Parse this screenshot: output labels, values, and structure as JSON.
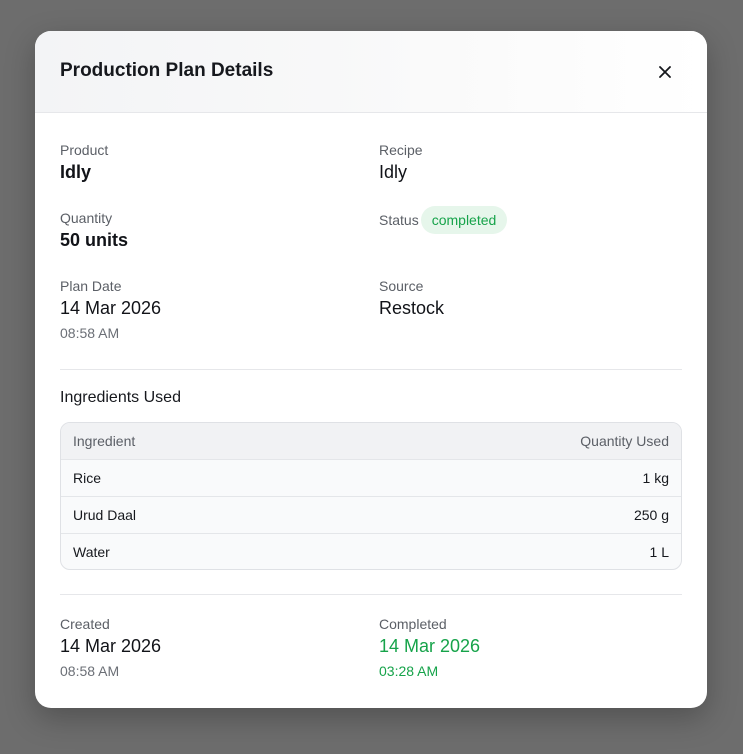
{
  "modal": {
    "title": "Production Plan Details"
  },
  "details": {
    "product_label": "Product",
    "product_value": "Idly",
    "recipe_label": "Recipe",
    "recipe_value": "Idly",
    "quantity_label": "Quantity",
    "quantity_value": "50 units",
    "status_label": "Status",
    "status_value": "completed",
    "plan_date_label": "Plan Date",
    "plan_date_value": "14 Mar 2026",
    "plan_time_value": "08:58 AM",
    "source_label": "Source",
    "source_value": "Restock"
  },
  "ingredients": {
    "title": "Ingredients Used",
    "columns": [
      "Ingredient",
      "Quantity Used"
    ],
    "rows": [
      {
        "name": "Rice",
        "quantity": "1 kg"
      },
      {
        "name": "Urud Daal",
        "quantity": "250 g"
      },
      {
        "name": "Water",
        "quantity": "1 L"
      }
    ]
  },
  "footer": {
    "created_label": "Created",
    "created_date": "14 Mar 2026",
    "created_time": "08:58 AM",
    "completed_label": "Completed",
    "completed_date": "14 Mar 2026",
    "completed_time": "03:28 AM"
  },
  "colors": {
    "success": "#16a34a",
    "badge_bg": "#e6f6eb",
    "backdrop": "#6d6d6d"
  },
  "icons": {
    "close": "close-icon"
  }
}
